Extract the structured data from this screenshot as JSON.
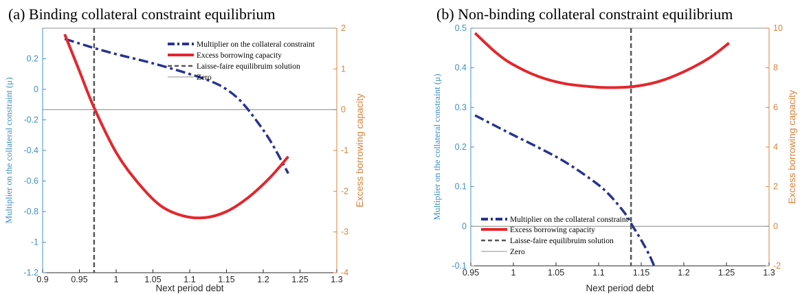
{
  "chart_data": [
    {
      "type": "line",
      "title": "(a) Binding collateral constraint equilibrium",
      "xlabel": "Next period debt",
      "ylabel_left": "Multiplier on the collateral constraint (μ)",
      "ylabel_right": "Excess borrowing capacity",
      "xlim": [
        0.9,
        1.3
      ],
      "ylim_left": [
        -1.2,
        0.4
      ],
      "ylim_right": [
        -4,
        2
      ],
      "xticks": [
        "0.9",
        "0.95",
        "1",
        "1.05",
        "1.1",
        "1.15",
        "1.2",
        "1.25",
        "1.3"
      ],
      "yticks_left": [
        "-1.2",
        "-1",
        "-0.8",
        "-0.6",
        "-0.4",
        "-0.2",
        "0",
        "0.2"
      ],
      "yticks_right": [
        "-4",
        "-3",
        "-2",
        "-1",
        "0",
        "1",
        "2"
      ],
      "legend_position": "top-right",
      "legend": [
        "Multiplier on the collateral constraint",
        "Excess borrowing capacity",
        "Laisse-faire equilibruim solution",
        "Zero"
      ],
      "series": [
        {
          "name": "Multiplier on the collateral constraint",
          "axis": "left",
          "x": [
            0.93,
            0.95,
            0.97,
            1.0,
            1.05,
            1.1,
            1.13,
            1.15,
            1.17,
            1.19,
            1.21,
            1.234
          ],
          "y": [
            0.33,
            0.3,
            0.27,
            0.23,
            0.17,
            0.1,
            0.05,
            0.0,
            -0.08,
            -0.2,
            -0.34,
            -0.55
          ]
        },
        {
          "name": "Excess borrowing capacity",
          "axis": "right",
          "x": [
            0.93,
            0.95,
            0.97,
            1.0,
            1.03,
            1.06,
            1.09,
            1.12,
            1.15,
            1.18,
            1.21,
            1.234
          ],
          "y": [
            1.85,
            0.95,
            0.05,
            -1.05,
            -1.8,
            -2.35,
            -2.6,
            -2.65,
            -2.5,
            -2.15,
            -1.65,
            -1.15
          ]
        }
      ],
      "vline_x": 0.97,
      "zero_line_right_y": 0
    },
    {
      "type": "line",
      "title": "(b) Non-binding collateral constraint equilibrium",
      "xlabel": "Next period debt",
      "ylabel_left": "Multiplier on the collateral constraint (μ)",
      "ylabel_right": "Excess borrowing capacity",
      "xlim": [
        0.95,
        1.3
      ],
      "ylim_left": [
        -0.1,
        0.5
      ],
      "ylim_right": [
        -2,
        10
      ],
      "xticks": [
        "0.95",
        "1",
        "1.05",
        "1.1",
        "1.15",
        "1.2",
        "1.25",
        "1.3"
      ],
      "yticks_left": [
        "-0.1",
        "0",
        "0.1",
        "0.2",
        "0.3",
        "0.4",
        "0.5"
      ],
      "yticks_right": [
        "-2",
        "0",
        "2",
        "4",
        "6",
        "8",
        "10"
      ],
      "legend_position": "bottom-left",
      "legend": [
        "Multiplier on the collateral constraint",
        "Excess borrowing capacity",
        "Laisse-faire equilibruim solution",
        "Zero"
      ],
      "series": [
        {
          "name": "Multiplier on the collateral constraint",
          "axis": "left",
          "x": [
            0.955,
            0.98,
            1.0,
            1.03,
            1.06,
            1.09,
            1.11,
            1.13,
            1.14,
            1.15,
            1.16,
            1.167
          ],
          "y": [
            0.28,
            0.252,
            0.23,
            0.198,
            0.163,
            0.12,
            0.085,
            0.035,
            0.0,
            -0.035,
            -0.075,
            -0.11
          ]
        },
        {
          "name": "Excess borrowing capacity",
          "axis": "right",
          "x": [
            0.955,
            0.98,
            1.0,
            1.03,
            1.06,
            1.09,
            1.11,
            1.14,
            1.17,
            1.2,
            1.23,
            1.253
          ],
          "y": [
            9.75,
            8.75,
            8.15,
            7.55,
            7.2,
            7.05,
            7.0,
            7.05,
            7.3,
            7.8,
            8.5,
            9.25
          ]
        }
      ],
      "vline_x": 1.138,
      "zero_line_left_y": 0
    }
  ],
  "colors": {
    "multiplier": "#27338f",
    "excess": "#e4262c",
    "vline": "#555555",
    "zero": "#8c8c8c",
    "left_axis": "#3f8fc7",
    "right_axis": "#d9823b"
  }
}
